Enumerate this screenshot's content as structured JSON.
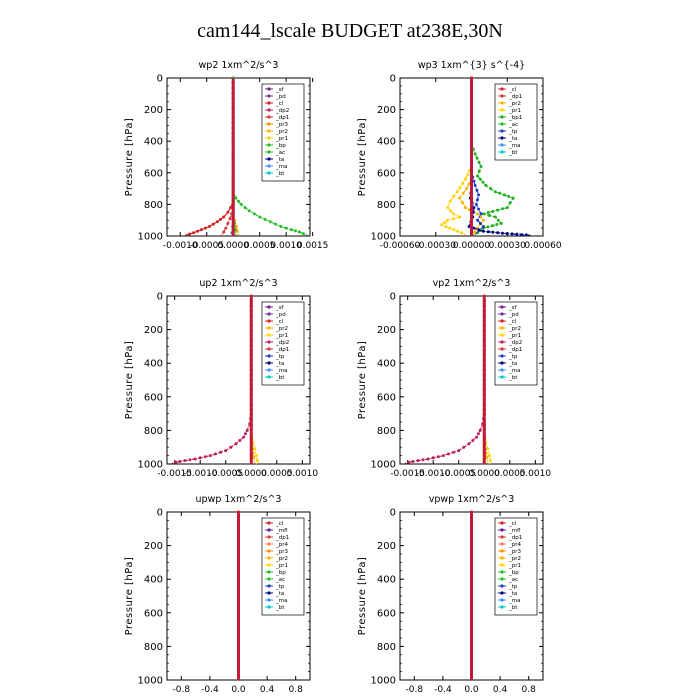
{
  "figure": {
    "title": "cam144_lscale  BUDGET at238E,30N"
  },
  "colors": {
    "sf": "#7a1a8a",
    "pd": "#6a3a9a",
    "cl": "#d62020",
    "mfl": "#5a1a9a",
    "dp2": "#c02060",
    "dp1": "#d63a3a",
    "pr4": "#ff7f50",
    "pr3": "#ff8c00",
    "pr2": "#ffb000",
    "pr1": "#ffd400",
    "bp": "#20c020",
    "bp1": "#20b020",
    "ac": "#20c020",
    "tp": "#1f3fbf",
    "ta": "#000080",
    "ma": "#3f8fff",
    "bt": "#00c8c8"
  },
  "chart_data": [
    {
      "type": "line",
      "title": "wp2   1xm^2/s^3",
      "ylabel": "Pressure [hPa]",
      "ylim": [
        1000,
        0
      ],
      "xlim": [
        -0.00125,
        0.00145
      ],
      "xticks": [
        -0.001,
        -0.0005,
        0.0,
        0.0005,
        0.001,
        0.0015
      ],
      "xtick_labels": [
        "-0.0010",
        "-0.0005",
        "0.0000",
        "0.0005",
        "0.0010",
        "0.0015"
      ],
      "yticks": [
        0,
        200,
        400,
        600,
        800,
        1000
      ],
      "legend": [
        "_sf",
        "_pd",
        "_cl",
        "_dp2",
        "_dp1",
        "_pr3",
        "_pr2",
        "_pr1",
        "_bp",
        "_ac",
        "_ta",
        "_ma",
        "_bt"
      ],
      "legend_keys": [
        "sf",
        "pd",
        "cl",
        "dp2",
        "dp1",
        "pr3",
        "pr2",
        "pr1",
        "bp",
        "ac",
        "ta",
        "ma",
        "bt"
      ],
      "legend_position": "top-right",
      "series": [
        {
          "key": "ac",
          "x": [
            0,
            0,
            5e-05,
            0.00015,
            0.0003,
            0.0005,
            0.0007,
            0.0009,
            0.0011,
            0.00125,
            0.0014
          ],
          "y": [
            0,
            720,
            760,
            800,
            840,
            880,
            910,
            940,
            960,
            975,
            995
          ]
        },
        {
          "key": "cl",
          "x": [
            0,
            0,
            -5e-05,
            -0.0001,
            -0.00018,
            -0.0003,
            -0.00045,
            -0.0006,
            -0.00075,
            -0.0009
          ],
          "y": [
            0,
            780,
            820,
            850,
            880,
            910,
            940,
            960,
            980,
            995
          ]
        },
        {
          "key": "dp1",
          "x": [
            0,
            0,
            -3e-05,
            -6e-05,
            -0.0001,
            -0.00014,
            -0.00018,
            -0.00022
          ],
          "y": [
            0,
            830,
            860,
            890,
            920,
            950,
            975,
            995
          ]
        },
        {
          "key": "pr2",
          "x": [
            0,
            0,
            3e-05,
            6e-05,
            8e-05,
            0.0001
          ],
          "y": [
            0,
            860,
            900,
            940,
            970,
            995
          ]
        },
        {
          "key": "pd",
          "x": [
            0,
            0,
            -1e-05,
            -2e-05,
            0
          ],
          "y": [
            0,
            900,
            940,
            980,
            1000
          ]
        },
        {
          "key": "bp",
          "x": [
            0,
            0,
            2e-05,
            4e-05,
            5e-05
          ],
          "y": [
            0,
            880,
            920,
            960,
            995
          ]
        }
      ]
    },
    {
      "type": "line",
      "title": "wp3   1xm^{3} s^{-4}",
      "ylabel": "Pressure [hPa]",
      "ylim": [
        1000,
        0
      ],
      "xlim": [
        -0.0006,
        0.0006
      ],
      "xticks": [
        -0.0006,
        -0.0003,
        0.0,
        0.0003,
        0.0006
      ],
      "xtick_labels": [
        "-0.00060",
        "-0.00030",
        "0.00000",
        "0.00030",
        "0.00060"
      ],
      "yticks": [
        0,
        200,
        400,
        600,
        800,
        1000
      ],
      "legend": [
        "_cl",
        "_dp1",
        "_pr2",
        "_pr1",
        "_bp1",
        "_ac",
        "_tp",
        "_ta",
        "_ma",
        "_bt"
      ],
      "legend_keys": [
        "cl",
        "dp1",
        "pr2",
        "pr1",
        "bp1",
        "ac",
        "tp",
        "ta",
        "ma",
        "bt"
      ],
      "legend_position": "top-right",
      "series": [
        {
          "key": "bp1",
          "x": [
            0,
            0,
            3e-05,
            8e-05,
            5e-05,
            0.00012,
            0.0002,
            0.00035,
            0.0003,
            0.0001,
            0.0002,
            0.00025,
            0.0001,
            5e-05,
            0
          ],
          "y": [
            0,
            420,
            480,
            560,
            620,
            680,
            720,
            760,
            820,
            860,
            880,
            920,
            950,
            980,
            1000
          ]
        },
        {
          "key": "pr1",
          "x": [
            0,
            0,
            -5e-05,
            -0.00012,
            -0.00018,
            -0.0002,
            -0.00015,
            -0.0001,
            -0.0002,
            -0.00025,
            -0.00015,
            -5e-05
          ],
          "y": [
            0,
            560,
            640,
            720,
            780,
            820,
            860,
            880,
            900,
            930,
            960,
            990
          ]
        },
        {
          "key": "pr2",
          "x": [
            0,
            0,
            -4e-05,
            -0.0001,
            -5e-05,
            5e-05,
            0.0001,
            5e-05,
            0
          ],
          "y": [
            0,
            640,
            700,
            760,
            820,
            860,
            900,
            950,
            1000
          ]
        },
        {
          "key": "tp",
          "x": [
            0,
            0,
            3e-05,
            6e-05,
            4e-05,
            8e-05,
            5e-05,
            0.0001,
            3e-05
          ],
          "y": [
            0,
            600,
            680,
            740,
            800,
            860,
            900,
            940,
            990
          ]
        },
        {
          "key": "ta",
          "x": [
            0,
            0,
            -1e-05,
            2e-05,
            1e-05,
            -2e-05,
            0.0001,
            0.0003,
            0.0005
          ],
          "y": [
            0,
            700,
            760,
            820,
            880,
            940,
            970,
            985,
            995
          ]
        },
        {
          "key": "cl",
          "x": [
            0,
            0
          ],
          "y": [
            0,
            1000
          ]
        }
      ]
    },
    {
      "type": "line",
      "title": "up2   1xm^2/s^3",
      "ylabel": "Pressure [hPa]",
      "ylim": [
        1000,
        0
      ],
      "xlim": [
        -0.00165,
        0.00115
      ],
      "xticks": [
        -0.0015,
        -0.001,
        -0.0005,
        0.0,
        0.0005,
        0.001
      ],
      "xtick_labels": [
        "-0.0015",
        "-0.0010",
        "-0.0005",
        "0.0000",
        "0.0005",
        "0.0010"
      ],
      "yticks": [
        0,
        200,
        400,
        600,
        800,
        1000
      ],
      "legend": [
        "_sf",
        "_pd",
        "_cl",
        "_pr2",
        "_pr1",
        "_dp2",
        "_dp1",
        "_tp",
        "_ta",
        "_ma",
        "_bt"
      ],
      "legend_keys": [
        "sf",
        "pd",
        "cl",
        "pr2",
        "pr1",
        "dp2",
        "dp1",
        "tp",
        "ta",
        "ma",
        "bt"
      ],
      "legend_position": "top-right",
      "series": [
        {
          "key": "dp2",
          "x": [
            0,
            0,
            -3e-05,
            -8e-05,
            -0.00015,
            -0.0003,
            -0.0005,
            -0.0008,
            -0.0011,
            -0.0014,
            -0.00155
          ],
          "y": [
            0,
            700,
            760,
            800,
            840,
            880,
            920,
            950,
            970,
            985,
            995
          ]
        },
        {
          "key": "pr1",
          "x": [
            0,
            0,
            3e-05,
            7e-05,
            0.0001,
            0.00012,
            0.0001
          ],
          "y": [
            0,
            820,
            870,
            910,
            950,
            980,
            1000
          ]
        },
        {
          "key": "pr2",
          "x": [
            0,
            0,
            2e-05,
            5e-05,
            7e-05
          ],
          "y": [
            0,
            860,
            910,
            960,
            995
          ]
        },
        {
          "key": "cl",
          "x": [
            0,
            0
          ],
          "y": [
            0,
            1000
          ]
        }
      ]
    },
    {
      "type": "line",
      "title": "vp2   1xm^2/s^3",
      "ylabel": "Pressure [hPa]",
      "ylim": [
        1000,
        0
      ],
      "xlim": [
        -0.00165,
        0.00115
      ],
      "xticks": [
        -0.0015,
        -0.001,
        -0.0005,
        0.0,
        0.0005,
        0.001
      ],
      "xtick_labels": [
        "-0.0015",
        "-0.0010",
        "-0.0005",
        "0.0000",
        "0.0005",
        "0.0010"
      ],
      "yticks": [
        0,
        200,
        400,
        600,
        800,
        1000
      ],
      "legend": [
        "_sf",
        "_pd",
        "_cl",
        "_pr2",
        "_pr1",
        "_dp2",
        "_dp1",
        "_tp",
        "_ta",
        "_ma",
        "_bt"
      ],
      "legend_keys": [
        "sf",
        "pd",
        "cl",
        "pr2",
        "pr1",
        "dp2",
        "dp1",
        "tp",
        "ta",
        "ma",
        "bt"
      ],
      "legend_position": "top-right",
      "series": [
        {
          "key": "dp2",
          "x": [
            0,
            0,
            -3e-05,
            -8e-05,
            -0.00015,
            -0.0003,
            -0.0005,
            -0.0008,
            -0.0011,
            -0.0014,
            -0.00155
          ],
          "y": [
            0,
            700,
            760,
            800,
            840,
            880,
            920,
            950,
            970,
            985,
            995
          ]
        },
        {
          "key": "pr1",
          "x": [
            0,
            0,
            3e-05,
            7e-05,
            0.0001,
            0.00012,
            0.0001
          ],
          "y": [
            0,
            820,
            870,
            910,
            950,
            980,
            1000
          ]
        },
        {
          "key": "pr2",
          "x": [
            0,
            0,
            2e-05,
            5e-05,
            7e-05
          ],
          "y": [
            0,
            860,
            910,
            960,
            995
          ]
        },
        {
          "key": "cl",
          "x": [
            0,
            0
          ],
          "y": [
            0,
            1000
          ]
        }
      ]
    },
    {
      "type": "line",
      "title": "upwp   1xm^2/s^3",
      "ylabel": "Pressure [hPa]",
      "ylim": [
        1000,
        0
      ],
      "xlim": [
        -1.0,
        1.0
      ],
      "xticks": [
        -0.8,
        -0.4,
        0.0,
        0.4,
        0.8
      ],
      "xtick_labels": [
        "-0.8",
        "-0.4",
        "0.0",
        "0.4",
        "0.8"
      ],
      "yticks": [
        0,
        200,
        400,
        600,
        800,
        1000
      ],
      "legend": [
        "_cl",
        "_mfl",
        "_dp1",
        "_pr4",
        "_pr3",
        "_pr2",
        "_pr1",
        "_bp",
        "_ac",
        "_tp",
        "_ta",
        "_ma",
        "_bt"
      ],
      "legend_keys": [
        "cl",
        "mfl",
        "dp1",
        "pr4",
        "pr3",
        "pr2",
        "pr1",
        "bp",
        "ac",
        "tp",
        "ta",
        "ma",
        "bt"
      ],
      "legend_position": "top-right",
      "series": [
        {
          "key": "mfl",
          "x": [
            0,
            0
          ],
          "y": [
            0,
            1000
          ]
        },
        {
          "key": "cl",
          "x": [
            0,
            0
          ],
          "y": [
            0,
            1000
          ]
        }
      ]
    },
    {
      "type": "line",
      "title": "vpwp   1xm^2/s^3",
      "ylabel": "Pressure [hPa]",
      "ylim": [
        1000,
        0
      ],
      "xlim": [
        -1.0,
        1.0
      ],
      "xticks": [
        -0.8,
        -0.4,
        0.0,
        0.4,
        0.8
      ],
      "xtick_labels": [
        "-0.8",
        "-0.4",
        "0.0",
        "0.4",
        "0.8"
      ],
      "yticks": [
        0,
        200,
        400,
        600,
        800,
        1000
      ],
      "legend": [
        "_cl",
        "_mfl",
        "_dp1",
        "_pr4",
        "_pr3",
        "_pr2",
        "_pr1",
        "_bp",
        "_ac",
        "_tp",
        "_ta",
        "_ma",
        "_bt"
      ],
      "legend_keys": [
        "cl",
        "mfl",
        "dp1",
        "pr4",
        "pr3",
        "pr2",
        "pr1",
        "bp",
        "ac",
        "tp",
        "ta",
        "ma",
        "bt"
      ],
      "legend_position": "top-right",
      "series": [
        {
          "key": "mfl",
          "x": [
            0,
            0
          ],
          "y": [
            0,
            1000
          ]
        },
        {
          "key": "cl",
          "x": [
            0,
            0
          ],
          "y": [
            0,
            1000
          ]
        }
      ]
    }
  ]
}
